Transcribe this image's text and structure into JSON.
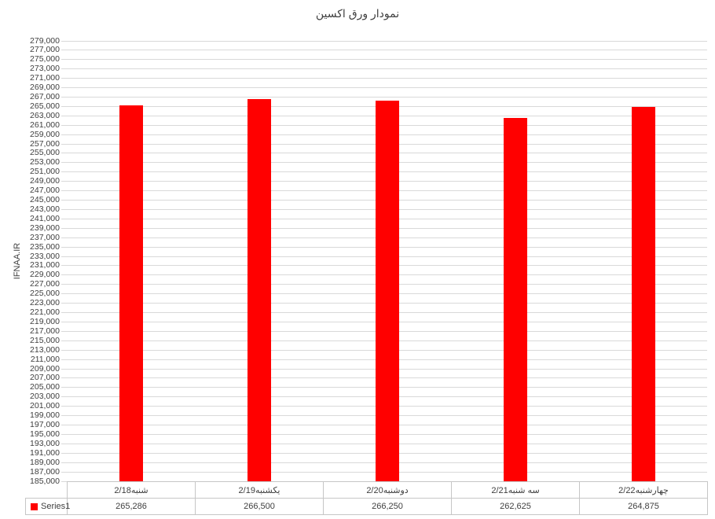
{
  "chart_data": {
    "type": "bar",
    "title": "نمودار ورق اکسین",
    "ylabel": "IFNAA.IR",
    "xlabel": "",
    "series_name": "Series1",
    "categories": [
      "شنبه2/18",
      "یکشنبه2/19",
      "دوشنبه2/20",
      "سه شنبه2/21",
      "چهارشنبه2/22"
    ],
    "values": [
      265286,
      266500,
      266250,
      262625,
      264875
    ],
    "value_labels": [
      "265,286",
      "266,500",
      "266,250",
      "262,625",
      "264,875"
    ],
    "ylim": [
      185000,
      279000
    ],
    "ytick_step": 2000,
    "ytick_labels": [
      "279,000",
      "277,000",
      "275,000",
      "273,000",
      "271,000",
      "269,000",
      "267,000",
      "265,000",
      "263,000",
      "261,000",
      "259,000",
      "257,000",
      "255,000",
      "253,000",
      "251,000",
      "249,000",
      "247,000",
      "245,000",
      "243,000",
      "241,000",
      "239,000",
      "237,000",
      "235,000",
      "233,000",
      "231,000",
      "229,000",
      "227,000",
      "225,000",
      "223,000",
      "221,000",
      "219,000",
      "217,000",
      "215,000",
      "213,000",
      "211,000",
      "209,000",
      "207,000",
      "205,000",
      "203,000",
      "201,000",
      "199,000",
      "197,000",
      "195,000",
      "193,000",
      "191,000",
      "189,000",
      "187,000",
      "185,000"
    ],
    "grid": true,
    "legend_position": "bottom-table-left",
    "colors": {
      "bar": "#FF0000",
      "gridline": "#D9D9D9",
      "table_border": "#C6C6C6",
      "text": "#404040"
    }
  }
}
